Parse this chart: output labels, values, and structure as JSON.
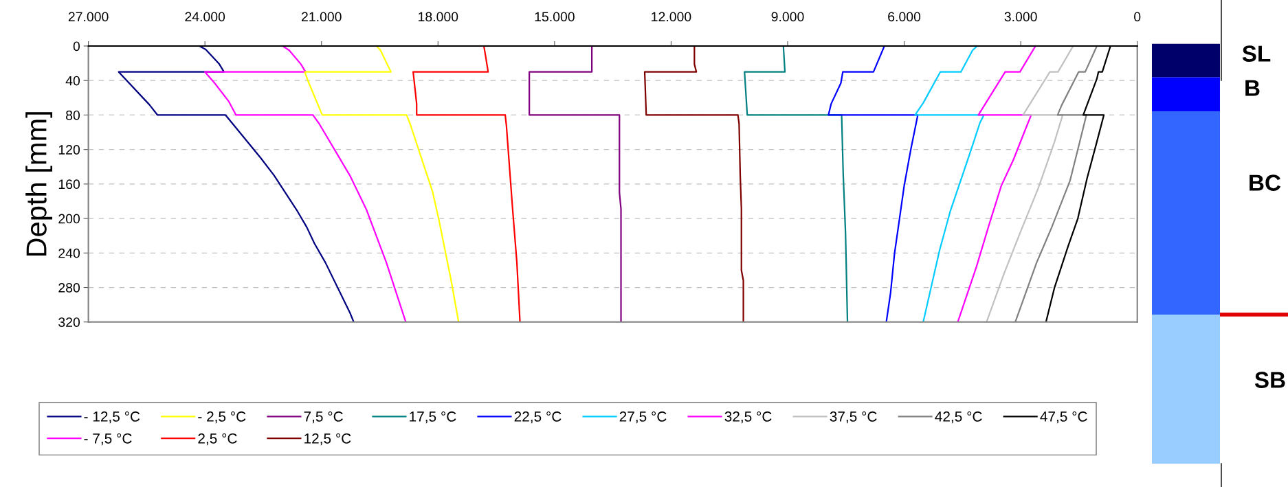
{
  "chart_data": {
    "type": "line",
    "ylabel": "Depth [mm]",
    "xlim": [
      27000,
      0
    ],
    "ylim": [
      320,
      0
    ],
    "xticks": [
      {
        "value": 27000,
        "label": "27.000"
      },
      {
        "value": 24000,
        "label": "24.000"
      },
      {
        "value": 21000,
        "label": "21.000"
      },
      {
        "value": 18000,
        "label": "18.000"
      },
      {
        "value": 15000,
        "label": "15.000"
      },
      {
        "value": 12000,
        "label": "12.000"
      },
      {
        "value": 9000,
        "label": "9.000"
      },
      {
        "value": 6000,
        "label": "6.000"
      },
      {
        "value": 3000,
        "label": "3.000"
      },
      0
    ],
    "yticks": [
      0,
      40,
      80,
      120,
      160,
      200,
      240,
      280,
      320
    ],
    "grid": "y",
    "legend": "bottom",
    "marker": "none",
    "line_style": "solid",
    "annotations": [
      "SL",
      "B",
      "BC",
      "SB"
    ],
    "series": [
      {
        "name": "- 12,5 °C",
        "color": "#000080",
        "x": [
          24140,
          23980,
          23630,
          23510,
          26220,
          25430,
          25220,
          23470,
          23270,
          22560,
          22220,
          21640,
          21380,
          21180,
          20900,
          20270,
          20170
        ],
        "values": [
          0,
          4,
          21,
          30,
          30,
          68,
          80,
          80,
          91,
          130,
          150,
          190,
          210,
          229,
          251,
          309,
          320
        ]
      },
      {
        "name": "- 7,5 °C",
        "color": "#ff00ff",
        "x": [
          22000,
          21830,
          21530,
          21410,
          24000,
          23750,
          23390,
          23200,
          21220,
          21060,
          20270,
          19840,
          19330,
          18830
        ],
        "values": [
          0,
          5,
          21,
          30,
          30,
          43,
          64,
          80,
          80,
          90,
          150,
          190,
          251,
          320
        ]
      },
      {
        "name": "- 2,5 °C",
        "color": "#ffff00",
        "x": [
          19580,
          19480,
          19310,
          19210,
          21430,
          21360,
          20980,
          18810,
          18720,
          18140,
          17980,
          17670,
          17470
        ],
        "values": [
          0,
          5,
          21,
          30,
          30,
          39,
          80,
          80,
          90,
          169,
          201,
          270,
          320
        ]
      },
      {
        "name": "2,5 °C",
        "color": "#ff0000",
        "x": [
          16820,
          16770,
          16710,
          18640,
          18550,
          18550,
          16270,
          16240,
          16080,
          15970,
          15890
        ],
        "values": [
          0,
          13,
          30,
          30,
          67,
          80,
          80,
          92,
          189,
          251,
          320
        ]
      },
      {
        "name": "7,5 °C",
        "color": "#800080",
        "x": [
          14040,
          14040,
          15650,
          15650,
          13330,
          13330,
          13290,
          13290
        ],
        "values": [
          0,
          30,
          30,
          80,
          80,
          170,
          189,
          320
        ]
      },
      {
        "name": "12,5 °C",
        "color": "#800000",
        "x": [
          11400,
          11400,
          11350,
          12680,
          12640,
          10280,
          10250,
          10220,
          10190,
          10190,
          10140,
          10140
        ],
        "values": [
          0,
          21,
          30,
          30,
          80,
          80,
          90,
          151,
          189,
          260,
          272,
          320
        ]
      },
      {
        "name": "17,5 °C",
        "color": "#008080",
        "x": [
          9110,
          9070,
          10110,
          10040,
          7610,
          7570,
          7510,
          7460
        ],
        "values": [
          0,
          30,
          30,
          80,
          80,
          148,
          217,
          320
        ]
      },
      {
        "name": "22,5 °C",
        "color": "#0000ff",
        "x": [
          6510,
          6790,
          7580,
          7630,
          7880,
          7950,
          5650,
          5830,
          6000,
          6120,
          6250,
          6350,
          6460
        ],
        "values": [
          0,
          30,
          30,
          43,
          67,
          80,
          80,
          120,
          162,
          200,
          241,
          286,
          320
        ]
      },
      {
        "name": "27,5 °C",
        "color": "#00ccff",
        "x": [
          4120,
          4240,
          4540,
          5070,
          5510,
          5720,
          3950,
          4050,
          4210,
          4350,
          4810,
          5090,
          5510
        ],
        "values": [
          0,
          5,
          30,
          30,
          66,
          80,
          80,
          89,
          111,
          130,
          191,
          237,
          320
        ]
      },
      {
        "name": "32,5 °C",
        "color": "#ff00ff",
        "x": [
          2620,
          3020,
          3400,
          4090,
          2730,
          2830,
          3190,
          3500,
          3820,
          4140,
          4620
        ],
        "values": [
          0,
          30,
          30,
          80,
          80,
          91,
          132,
          162,
          208,
          256,
          320
        ]
      },
      {
        "name": "37,5 °C",
        "color": "#c0c0c0",
        "x": [
          1650,
          2040,
          2250,
          2940,
          1920,
          2130,
          2550,
          3010,
          3430,
          3880
        ],
        "values": [
          0,
          30,
          30,
          80,
          80,
          111,
          165,
          216,
          264,
          320
        ]
      },
      {
        "name": "42,5 °C",
        "color": "#808080",
        "x": [
          1040,
          1340,
          1510,
          1950,
          2050,
          1310,
          1480,
          1730,
          2200,
          2590,
          3140
        ],
        "values": [
          0,
          30,
          30,
          69,
          80,
          80,
          111,
          156,
          210,
          251,
          320
        ]
      },
      {
        "name": "47,5 °C",
        "color": "#000000",
        "x": [
          690,
          900,
          1000,
          1040,
          1390,
          860,
          1040,
          1290,
          1530,
          1780,
          2130,
          2350
        ],
        "values": [
          0,
          30,
          30,
          38,
          80,
          80,
          111,
          153,
          200,
          232,
          280,
          320
        ]
      }
    ]
  }
}
